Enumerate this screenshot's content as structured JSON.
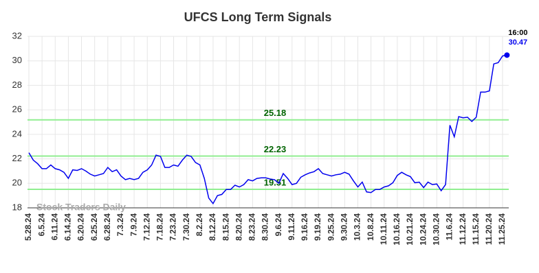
{
  "chart_data": {
    "type": "line",
    "title": "UFCS Long Term Signals",
    "watermark": "Stock Traders Daily",
    "last_time": "16:00",
    "categories": [
      "5.28.24",
      null,
      null,
      "6.5.24",
      null,
      null,
      "6.11.24",
      null,
      null,
      "6.14.24",
      null,
      null,
      "6.20.24",
      null,
      null,
      "6.25.24",
      null,
      null,
      "6.28.24",
      null,
      null,
      "7.3.24",
      null,
      null,
      "7.9.24",
      null,
      null,
      "7.12.24",
      null,
      null,
      "7.18.24",
      null,
      null,
      "7.23.24",
      null,
      null,
      "7.30.24",
      null,
      null,
      "8.2.24",
      null,
      null,
      "8.12.24",
      null,
      null,
      "8.15.24",
      null,
      null,
      "8.20.24",
      null,
      null,
      "8.23.24",
      null,
      null,
      "8.30.24",
      null,
      null,
      "9.6.24",
      null,
      null,
      "9.11.24",
      null,
      null,
      "9.16.24",
      null,
      null,
      "9.19.24",
      null,
      null,
      "9.25.24",
      null,
      null,
      "9.30.24",
      null,
      null,
      "10.3.24",
      null,
      null,
      "10.8.24",
      null,
      null,
      "10.11.24",
      null,
      null,
      "10.16.24",
      null,
      null,
      "10.21.24",
      null,
      null,
      "10.24.24",
      null,
      null,
      "10.30.24",
      null,
      null,
      "11.6.24",
      null,
      null,
      "11.12.24",
      null,
      null,
      "11.15.24",
      null,
      null,
      "11.20.24",
      null,
      null,
      "11.25.24",
      null
    ],
    "series": [
      {
        "color": "#0000ee",
        "values": [
          22.5,
          21.9,
          21.6,
          21.2,
          21.2,
          21.5,
          21.2,
          21.1,
          20.9,
          20.4,
          21.1,
          21.05,
          21.2,
          21.0,
          20.75,
          20.6,
          20.7,
          20.8,
          21.3,
          20.95,
          21.1,
          20.6,
          20.3,
          20.4,
          20.3,
          20.4,
          20.9,
          21.1,
          21.5,
          22.3,
          22.2,
          21.3,
          21.3,
          21.5,
          21.4,
          21.9,
          22.3,
          22.2,
          21.7,
          21.5,
          20.4,
          18.8,
          18.35,
          19.0,
          19.1,
          19.5,
          19.5,
          19.85,
          19.7,
          19.9,
          20.3,
          20.2,
          20.4,
          20.45,
          20.45,
          20.35,
          20.3,
          20.0,
          20.8,
          20.4,
          19.9,
          20.0,
          20.5,
          20.7,
          20.85,
          20.95,
          21.2,
          20.8,
          20.7,
          20.6,
          20.7,
          20.75,
          20.9,
          20.75,
          20.2,
          19.7,
          20.1,
          19.3,
          19.25,
          19.5,
          19.5,
          19.7,
          19.8,
          20.05,
          20.65,
          20.9,
          20.7,
          20.55,
          20.05,
          20.1,
          19.65,
          20.1,
          19.9,
          19.95,
          19.4,
          19.9,
          24.75,
          23.8,
          25.45,
          25.35,
          25.4,
          25.05,
          25.4,
          27.45,
          27.45,
          27.55,
          29.75,
          29.85,
          30.4,
          30.47
        ]
      }
    ],
    "hlines": [
      {
        "value": 25.18,
        "color": "#90ee90",
        "label_color": "#006400"
      },
      {
        "value": 22.23,
        "color": "#90ee90",
        "label_color": "#006400"
      },
      {
        "value": 19.51,
        "color": "#90ee90",
        "label_color": "#006400"
      }
    ],
    "ylim": [
      18,
      32
    ],
    "yticks": [
      18,
      20,
      22,
      24,
      26,
      28,
      30,
      32
    ],
    "grid": true
  }
}
